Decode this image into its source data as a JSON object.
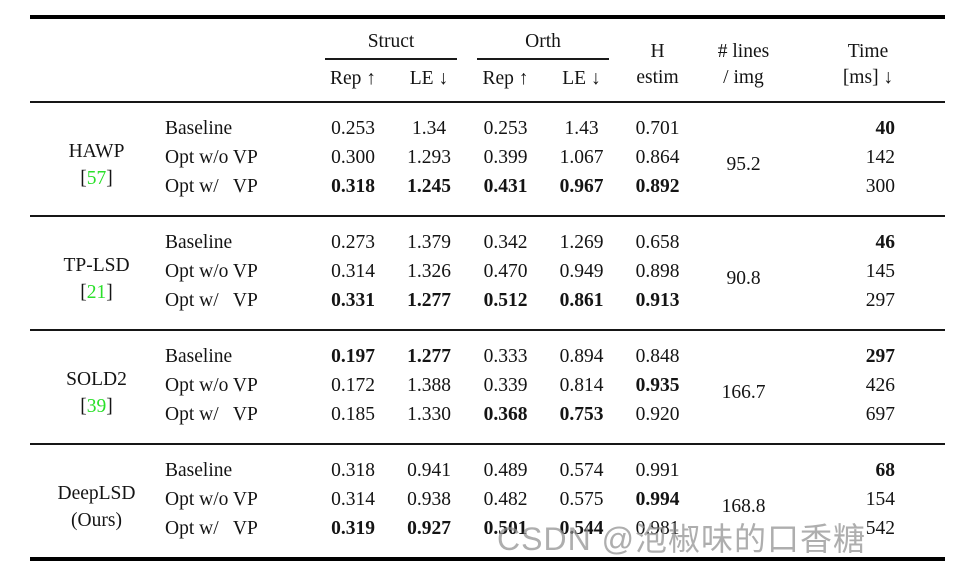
{
  "colors": {
    "cite_green": "#2ae02a",
    "text": "#141414",
    "rule": "#000000",
    "watermark_gray": "#8f8f8f"
  },
  "table": {
    "header": {
      "struct_label": "Struct",
      "orth_label": "Orth",
      "sub_labels": [
        "Rep ↑",
        "LE ↓",
        "Rep ↑",
        "LE ↓"
      ],
      "h_estim": {
        "line1": "H",
        "line2": "estim"
      },
      "lines": {
        "line1": "# lines",
        "line2": "/ img"
      },
      "time": {
        "line1": "Time",
        "line2": "[ms] ↓"
      }
    },
    "groups": [
      {
        "method": {
          "name": "HAWP",
          "cite": "57"
        },
        "lines_per_img": "95.2",
        "rows": [
          {
            "variant": "Baseline",
            "cells": [
              "0.253",
              "1.34",
              "0.253",
              "1.43",
              "0.701",
              "40"
            ],
            "bold": [
              false,
              false,
              false,
              false,
              false,
              true
            ]
          },
          {
            "variant": "Opt w/o VP",
            "cells": [
              "0.300",
              "1.293",
              "0.399",
              "1.067",
              "0.864",
              "142"
            ],
            "bold": [
              false,
              false,
              false,
              false,
              false,
              false
            ]
          },
          {
            "variant": "Opt w/   VP",
            "cells": [
              "0.318",
              "1.245",
              "0.431",
              "0.967",
              "0.892",
              "300"
            ],
            "bold": [
              true,
              true,
              true,
              true,
              true,
              false
            ]
          }
        ]
      },
      {
        "method": {
          "name": "TP-LSD",
          "cite": "21"
        },
        "lines_per_img": "90.8",
        "rows": [
          {
            "variant": "Baseline",
            "cells": [
              "0.273",
              "1.379",
              "0.342",
              "1.269",
              "0.658",
              "46"
            ],
            "bold": [
              false,
              false,
              false,
              false,
              false,
              true
            ]
          },
          {
            "variant": "Opt w/o VP",
            "cells": [
              "0.314",
              "1.326",
              "0.470",
              "0.949",
              "0.898",
              "145"
            ],
            "bold": [
              false,
              false,
              false,
              false,
              false,
              false
            ]
          },
          {
            "variant": "Opt w/   VP",
            "cells": [
              "0.331",
              "1.277",
              "0.512",
              "0.861",
              "0.913",
              "297"
            ],
            "bold": [
              true,
              true,
              true,
              true,
              true,
              false
            ]
          }
        ]
      },
      {
        "method": {
          "name": "SOLD2",
          "cite": "39"
        },
        "lines_per_img": "166.7",
        "rows": [
          {
            "variant": "Baseline",
            "cells": [
              "0.197",
              "1.277",
              "0.333",
              "0.894",
              "0.848",
              "297"
            ],
            "bold": [
              true,
              true,
              false,
              false,
              false,
              true
            ]
          },
          {
            "variant": "Opt w/o VP",
            "cells": [
              "0.172",
              "1.388",
              "0.339",
              "0.814",
              "0.935",
              "426"
            ],
            "bold": [
              false,
              false,
              false,
              false,
              true,
              false
            ]
          },
          {
            "variant": "Opt w/   VP",
            "cells": [
              "0.185",
              "1.330",
              "0.368",
              "0.753",
              "0.920",
              "697"
            ],
            "bold": [
              false,
              false,
              true,
              true,
              false,
              false
            ]
          }
        ]
      },
      {
        "method": {
          "name": "DeepLSD",
          "sub": "(Ours)"
        },
        "lines_per_img": "168.8",
        "rows": [
          {
            "variant": "Baseline",
            "cells": [
              "0.318",
              "0.941",
              "0.489",
              "0.574",
              "0.991",
              "68"
            ],
            "bold": [
              false,
              false,
              false,
              false,
              false,
              true
            ]
          },
          {
            "variant": "Opt w/o VP",
            "cells": [
              "0.314",
              "0.938",
              "0.482",
              "0.575",
              "0.994",
              "154"
            ],
            "bold": [
              false,
              false,
              false,
              false,
              true,
              false
            ]
          },
          {
            "variant": "Opt w/   VP",
            "cells": [
              "0.319",
              "0.927",
              "0.501",
              "0.544",
              "0.981",
              "542"
            ],
            "bold": [
              true,
              true,
              true,
              true,
              false,
              false
            ]
          }
        ]
      }
    ]
  },
  "watermark": {
    "text": "CSDN @泡椒味的口香糖"
  }
}
